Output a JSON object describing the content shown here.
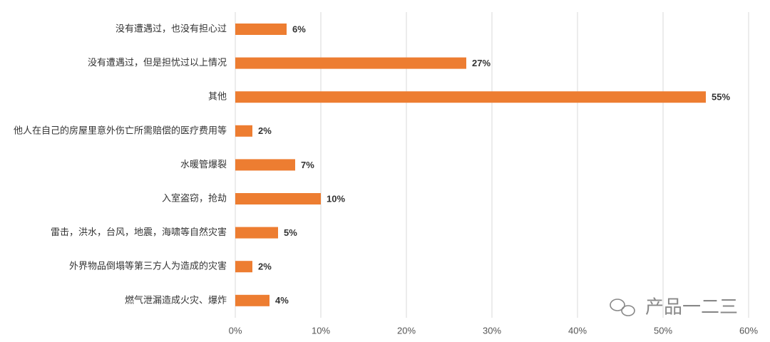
{
  "chart_data": {
    "type": "bar",
    "orientation": "horizontal",
    "categories": [
      "没有遭遇过，也没有担心过",
      "没有遭遇过，但是担忧过以上情况",
      "其他",
      "他人在自己的房屋里意外伤亡所需赔偿的医疗费用等",
      "水暖管爆裂",
      "入室盗窃，抢劫",
      "雷击，洪水，台风，地震，海啸等自然灾害",
      "外界物品倒塌等第三方人为造成的灾害",
      "燃气泄漏造成火灾、爆炸"
    ],
    "values": [
      6,
      27,
      55,
      2,
      7,
      10,
      5,
      2,
      4
    ],
    "value_labels": [
      "6%",
      "27%",
      "55%",
      "2%",
      "7%",
      "10%",
      "5%",
      "2%",
      "4%"
    ],
    "color": "#ed7d31",
    "xlim": [
      0,
      60
    ],
    "xticks": [
      {
        "value": 0,
        "label": "0%"
      },
      {
        "value": 10,
        "label": "10%"
      },
      {
        "value": 20,
        "label": "20%"
      },
      {
        "value": 30,
        "label": "30%"
      },
      {
        "value": 40,
        "label": "40%"
      },
      {
        "value": 50,
        "label": "50%"
      },
      {
        "value": 60,
        "label": "60%"
      }
    ],
    "grid": true
  },
  "watermark": "产品一二三"
}
